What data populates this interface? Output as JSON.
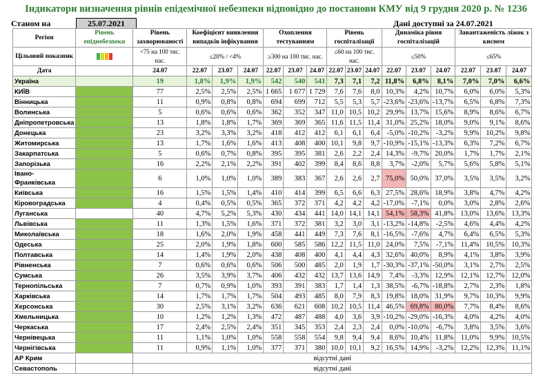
{
  "title": "Індикатори визначення рівнів епідемічної небезпеки відповідно до постанови КМУ від 9 грудня 2020 р. № 1236",
  "stanom_label": "Станом на",
  "stanom_date": "25.07.2021",
  "data_note": "Дані доступні за 24.07.2021",
  "headers": {
    "region": "Регіон",
    "level": "Рівень епіднебезпеки",
    "incidence": "Рівень захворюваності",
    "detection": "Коефіцієнт виявлення випадків інфікування",
    "testing": "Охоплення тестуванням",
    "hosp": "Рівень госпіталізації",
    "dyn": "Динаміка рівня госпіталізацій",
    "beds": "Завантаженість ліжок з киснем"
  },
  "targets": {
    "label": "Цільовий показник",
    "incidence": "<75 на 100 тис. нас.",
    "detection": "≤20% / <4%",
    "testing": "≥300 на 100 тис. нас.",
    "hosp": "≤60 на 100 тис. нас.",
    "dyn": "≤50%",
    "beds": "≤65%"
  },
  "date_label": "Дата",
  "dates": {
    "incidence": "24.07",
    "d1": "22.07",
    "d2": "23.07",
    "d3": "24.07"
  },
  "legend_colors": [
    "#4caf50",
    "#cddc39",
    "#ffb300",
    "#e53935"
  ],
  "colors": {
    "green": "#8bc34a",
    "red": "#f4b6b6",
    "title": "#2e7d32"
  },
  "ukraine": {
    "name": "Україна",
    "inc": "19",
    "det": [
      "1,8%",
      "1,9%",
      "1,9%"
    ],
    "test": [
      "542",
      "540",
      "541"
    ],
    "hosp": [
      "7,3",
      "7,1",
      "7,2"
    ],
    "dyn": [
      "11,8%",
      "6,8%",
      "8,1%"
    ],
    "beds": [
      "7,0%",
      "7,0%",
      "6,6%"
    ]
  },
  "regions": [
    {
      "name": "КИЇВ",
      "inc": "77",
      "det": [
        "2,5%",
        "2,5%",
        "2,5%"
      ],
      "test": [
        "1 665",
        "1 677",
        "1 729"
      ],
      "hosp": [
        "7,6",
        "7,6",
        "8,0"
      ],
      "dyn": [
        "10,3%",
        "4,2%",
        "10,7%"
      ],
      "beds": [
        "6,0%",
        "6,0%",
        "5,3%"
      ],
      "red": []
    },
    {
      "name": "Вінницька",
      "inc": "11",
      "det": [
        "0,9%",
        "0,8%",
        "0,8%"
      ],
      "test": [
        "694",
        "699",
        "712"
      ],
      "hosp": [
        "5,5",
        "5,3",
        "5,7"
      ],
      "dyn": [
        "-23,6%",
        "-23,6%",
        "-13,7%"
      ],
      "beds": [
        "6,5%",
        "6,8%",
        "7,3%"
      ],
      "red": []
    },
    {
      "name": "Волинська",
      "inc": "5",
      "det": [
        "0,6%",
        "0,6%",
        "0,6%"
      ],
      "test": [
        "362",
        "352",
        "347"
      ],
      "hosp": [
        "11,0",
        "10,5",
        "10,2"
      ],
      "dyn": [
        "29,9%",
        "13,7%",
        "15,6%"
      ],
      "beds": [
        "8,9%",
        "8,6%",
        "6,7%"
      ],
      "red": []
    },
    {
      "name": "Дніпропетровська",
      "inc": "13",
      "det": [
        "1,8%",
        "1,8%",
        "1,7%"
      ],
      "test": [
        "369",
        "369",
        "365"
      ],
      "hosp": [
        "11,6",
        "11,5",
        "11,4"
      ],
      "dyn": [
        "31,0%",
        "25,2%",
        "18,0%"
      ],
      "beds": [
        "9,0%",
        "9,1%",
        "8,6%"
      ],
      "red": []
    },
    {
      "name": "Донецька",
      "inc": "23",
      "det": [
        "3,2%",
        "3,3%",
        "3,2%"
      ],
      "test": [
        "418",
        "412",
        "412"
      ],
      "hosp": [
        "6,1",
        "6,1",
        "6,4"
      ],
      "dyn": [
        "-5,0%",
        "-10,2%",
        "-3,2%"
      ],
      "beds": [
        "9,9%",
        "10,2%",
        "9,8%"
      ],
      "red": []
    },
    {
      "name": "Житомирська",
      "inc": "13",
      "det": [
        "1,7%",
        "1,6%",
        "1,6%"
      ],
      "test": [
        "413",
        "408",
        "400"
      ],
      "hosp": [
        "10,1",
        "9,8",
        "9,7"
      ],
      "dyn": [
        "-10,9%",
        "-15,1%",
        "-13,3%"
      ],
      "beds": [
        "6,3%",
        "7,2%",
        "6,7%"
      ],
      "red": []
    },
    {
      "name": "Закарпатська",
      "inc": "5",
      "det": [
        "0,6%",
        "0,7%",
        "0,8%"
      ],
      "test": [
        "395",
        "395",
        "381"
      ],
      "hosp": [
        "2,6",
        "2,2",
        "2,4"
      ],
      "dyn": [
        "14,3%",
        "-9,7%",
        "20,0%"
      ],
      "beds": [
        "1,7%",
        "1,7%",
        "2,1%"
      ],
      "red": []
    },
    {
      "name": "Запорізька",
      "inc": "16",
      "det": [
        "2,2%",
        "2,1%",
        "2,2%"
      ],
      "test": [
        "391",
        "402",
        "399"
      ],
      "hosp": [
        "8,4",
        "8,6",
        "8,8"
      ],
      "dyn": [
        "3,7%",
        "-2,0%",
        "5,7%"
      ],
      "beds": [
        "5,6%",
        "5,8%",
        "5,1%"
      ],
      "red": []
    },
    {
      "name": "Івано-Франківська",
      "inc": "6",
      "det": [
        "1,0%",
        "1,0%",
        "1,0%"
      ],
      "test": [
        "389",
        "383",
        "367"
      ],
      "hosp": [
        "2,6",
        "2,6",
        "2,7"
      ],
      "dyn": [
        "75,0%",
        "50,0%",
        "37,0%"
      ],
      "beds": [
        "3,5%",
        "3,5%",
        "3,2%"
      ],
      "red": [
        0
      ],
      "tall": true
    },
    {
      "name": "Київська",
      "inc": "16",
      "det": [
        "1,5%",
        "1,5%",
        "1,4%"
      ],
      "test": [
        "410",
        "414",
        "399"
      ],
      "hosp": [
        "6,5",
        "6,6",
        "6,3"
      ],
      "dyn": [
        "27,5%",
        "28,6%",
        "18,9%"
      ],
      "beds": [
        "3,8%",
        "4,7%",
        "4,2%"
      ],
      "red": []
    },
    {
      "name": "Кіровоградська",
      "inc": "4",
      "det": [
        "0,4%",
        "0,5%",
        "0,5%"
      ],
      "test": [
        "365",
        "372",
        "371"
      ],
      "hosp": [
        "4,2",
        "4,2",
        "4,2"
      ],
      "dyn": [
        "-17,0%",
        "-7,1%",
        "0,0%"
      ],
      "beds": [
        "3,0%",
        "2,8%",
        "2,6%"
      ],
      "red": []
    },
    {
      "name": "Луганська",
      "inc": "40",
      "det": [
        "4,7%",
        "5,2%",
        "5,3%"
      ],
      "test": [
        "430",
        "434",
        "441"
      ],
      "hosp": [
        "14,0",
        "14,1",
        "14,1"
      ],
      "dyn": [
        "54,1%",
        "58,3%",
        "41,8%"
      ],
      "beds": [
        "13,0%",
        "13,6%",
        "13,3%"
      ],
      "red": [
        0,
        1
      ],
      "nogreen": true
    },
    {
      "name": "Львівська",
      "inc": "11",
      "det": [
        "1,3%",
        "1,5%",
        "1,6%"
      ],
      "test": [
        "371",
        "372",
        "381"
      ],
      "hosp": [
        "3,2",
        "3,0",
        "3,1"
      ],
      "dyn": [
        "-13,2%",
        "-14,8%",
        "-2,5%"
      ],
      "beds": [
        "4,6%",
        "4,4%",
        "4,2%"
      ],
      "red": []
    },
    {
      "name": "Миколаївська",
      "inc": "18",
      "det": [
        "1,6%",
        "2,0%",
        "1,9%"
      ],
      "test": [
        "458",
        "441",
        "449"
      ],
      "hosp": [
        "7,3",
        "7,6",
        "8,1"
      ],
      "dyn": [
        "-16,5%",
        "-7,6%",
        "4,7%"
      ],
      "beds": [
        "6,4%",
        "6,5%",
        "5,3%"
      ],
      "red": []
    },
    {
      "name": "Одеська",
      "inc": "25",
      "det": [
        "2,0%",
        "1,9%",
        "1,8%"
      ],
      "test": [
        "600",
        "585",
        "586"
      ],
      "hosp": [
        "12,2",
        "11,5",
        "11,0"
      ],
      "dyn": [
        "24,0%",
        "7,5%",
        "-7,1%"
      ],
      "beds": [
        "11,4%",
        "10,5%",
        "10,3%"
      ],
      "red": []
    },
    {
      "name": "Полтавська",
      "inc": "14",
      "det": [
        "1,4%",
        "1,9%",
        "2,0%"
      ],
      "test": [
        "438",
        "408",
        "400"
      ],
      "hosp": [
        "4,1",
        "4,4",
        "4,3"
      ],
      "dyn": [
        "32,6%",
        "40,0%",
        "8,9%"
      ],
      "beds": [
        "4,1%",
        "3,8%",
        "3,9%"
      ],
      "red": []
    },
    {
      "name": "Рівненська",
      "inc": "7",
      "det": [
        "0,6%",
        "0,6%",
        "0,6%"
      ],
      "test": [
        "506",
        "500",
        "485"
      ],
      "hosp": [
        "2,0",
        "1,9",
        "1,7"
      ],
      "dyn": [
        "-30,3%",
        "-37,1%",
        "-50,0%"
      ],
      "beds": [
        "3,1%",
        "2,7%",
        "2,5%"
      ],
      "red": []
    },
    {
      "name": "Сумська",
      "inc": "26",
      "det": [
        "3,5%",
        "3,9%",
        "3,7%"
      ],
      "test": [
        "406",
        "432",
        "432"
      ],
      "hosp": [
        "13,7",
        "13,6",
        "14,9"
      ],
      "dyn": [
        "7,4%",
        "-3,3%",
        "12,9%"
      ],
      "beds": [
        "12,1%",
        "12,7%",
        "12,0%"
      ],
      "red": []
    },
    {
      "name": "Тернопільська",
      "inc": "7",
      "det": [
        "0,7%",
        "0,9%",
        "1,0%"
      ],
      "test": [
        "393",
        "391",
        "383"
      ],
      "hosp": [
        "1,7",
        "1,4",
        "1,3"
      ],
      "dyn": [
        "38,5%",
        "-6,7%",
        "-18,8%"
      ],
      "beds": [
        "2,7%",
        "2,3%",
        "1,8%"
      ],
      "red": []
    },
    {
      "name": "Харківська",
      "inc": "14",
      "det": [
        "1,7%",
        "1,7%",
        "1,7%"
      ],
      "test": [
        "504",
        "493",
        "485"
      ],
      "hosp": [
        "8,0",
        "7,9",
        "8,3"
      ],
      "dyn": [
        "19,8%",
        "18,0%",
        "31,9%"
      ],
      "beds": [
        "9,7%",
        "10,3%",
        "9,9%"
      ],
      "red": []
    },
    {
      "name": "Херсонська",
      "inc": "30",
      "det": [
        "2,5%",
        "3,1%",
        "3,2%"
      ],
      "test": [
        "636",
        "621",
        "608"
      ],
      "hosp": [
        "10,2",
        "10,5",
        "11,4"
      ],
      "dyn": [
        "46,5%",
        "69,8%",
        "80,0%"
      ],
      "beds": [
        "7,7%",
        "8,4%",
        "8,6%"
      ],
      "red": [
        1,
        2
      ]
    },
    {
      "name": "Хмельницька",
      "inc": "10",
      "det": [
        "1,2%",
        "1,2%",
        "1,3%"
      ],
      "test": [
        "472",
        "487",
        "488"
      ],
      "hosp": [
        "4,0",
        "3,6",
        "3,9"
      ],
      "dyn": [
        "-10,2%",
        "-29,0%",
        "-16,3%"
      ],
      "beds": [
        "4,0%",
        "4,2%",
        "4,0%"
      ],
      "red": []
    },
    {
      "name": "Черкаська",
      "inc": "17",
      "det": [
        "2,4%",
        "2,5%",
        "2,4%"
      ],
      "test": [
        "351",
        "345",
        "353"
      ],
      "hosp": [
        "2,4",
        "2,3",
        "2,4"
      ],
      "dyn": [
        "0,0%",
        "-10,0%",
        "-6,7%"
      ],
      "beds": [
        "3,8%",
        "3,5%",
        "3,6%"
      ],
      "red": []
    },
    {
      "name": "Чернівецька",
      "inc": "11",
      "det": [
        "1,1%",
        "1,0%",
        "1,0%"
      ],
      "test": [
        "558",
        "558",
        "554"
      ],
      "hosp": [
        "9,8",
        "9,4",
        "9,4"
      ],
      "dyn": [
        "8,6%",
        "10,4%",
        "11,8%"
      ],
      "beds": [
        "11,0%",
        "9,9%",
        "10,5%"
      ],
      "red": []
    },
    {
      "name": "Чернігівська",
      "inc": "11",
      "det": [
        "0,9%",
        "1,1%",
        "1,0%"
      ],
      "test": [
        "377",
        "371",
        "380"
      ],
      "hosp": [
        "10,0",
        "10,1",
        "9,2"
      ],
      "dyn": [
        "16,5%",
        "14,9%",
        "-3,2%"
      ],
      "beds": [
        "12,2%",
        "12,3%",
        "11,1%"
      ],
      "red": []
    }
  ],
  "no_data": [
    {
      "name": "АР Крим",
      "text": "відсутні дані"
    },
    {
      "name": "Севастополь",
      "text": "відсутні дані"
    }
  ]
}
